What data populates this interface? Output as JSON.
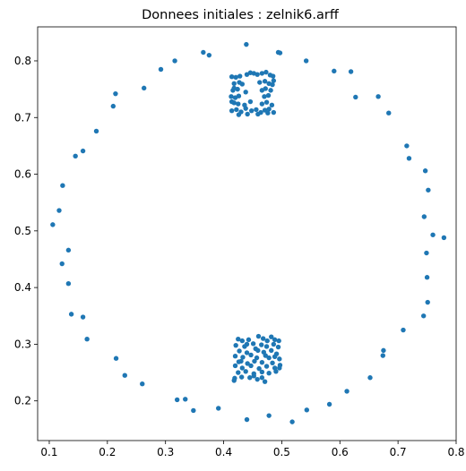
{
  "chart_data": {
    "type": "scatter",
    "title": "Donnees initiales : zelnik6.arff",
    "xlabel": "",
    "ylabel": "",
    "xlim": [
      0.08,
      0.8
    ],
    "ylim": [
      0.13,
      0.86
    ],
    "xticks": [
      "0.1",
      "0.2",
      "0.3",
      "0.4",
      "0.5",
      "0.6",
      "0.7",
      "0.8"
    ],
    "xtick_values": [
      0.1,
      0.2,
      0.3,
      0.4,
      0.5,
      0.6,
      0.7,
      0.8
    ],
    "yticks": [
      "0.2",
      "0.3",
      "0.4",
      "0.5",
      "0.6",
      "0.7",
      "0.8"
    ],
    "ytick_values": [
      0.2,
      0.3,
      0.4,
      0.5,
      0.6,
      0.7,
      0.8
    ],
    "grid": false,
    "marker_color": "#1f77b4",
    "series": [
      {
        "name": "",
        "points": [
          [
            0.439,
            0.829
          ],
          [
            0.365,
            0.815
          ],
          [
            0.375,
            0.81
          ],
          [
            0.316,
            0.8
          ],
          [
            0.292,
            0.785
          ],
          [
            0.263,
            0.752
          ],
          [
            0.214,
            0.742
          ],
          [
            0.21,
            0.72
          ],
          [
            0.181,
            0.676
          ],
          [
            0.158,
            0.641
          ],
          [
            0.145,
            0.632
          ],
          [
            0.123,
            0.58
          ],
          [
            0.117,
            0.536
          ],
          [
            0.106,
            0.511
          ],
          [
            0.133,
            0.466
          ],
          [
            0.122,
            0.442
          ],
          [
            0.133,
            0.407
          ],
          [
            0.138,
            0.353
          ],
          [
            0.158,
            0.348
          ],
          [
            0.165,
            0.309
          ],
          [
            0.215,
            0.275
          ],
          [
            0.23,
            0.245
          ],
          [
            0.26,
            0.23
          ],
          [
            0.32,
            0.202
          ],
          [
            0.334,
            0.203
          ],
          [
            0.348,
            0.183
          ],
          [
            0.391,
            0.187
          ],
          [
            0.44,
            0.167
          ],
          [
            0.478,
            0.174
          ],
          [
            0.518,
            0.163
          ],
          [
            0.543,
            0.184
          ],
          [
            0.582,
            0.194
          ],
          [
            0.612,
            0.217
          ],
          [
            0.652,
            0.241
          ],
          [
            0.674,
            0.28
          ],
          [
            0.675,
            0.289
          ],
          [
            0.709,
            0.325
          ],
          [
            0.744,
            0.35
          ],
          [
            0.751,
            0.374
          ],
          [
            0.75,
            0.418
          ],
          [
            0.749,
            0.461
          ],
          [
            0.745,
            0.525
          ],
          [
            0.76,
            0.493
          ],
          [
            0.779,
            0.488
          ],
          [
            0.752,
            0.572
          ],
          [
            0.747,
            0.606
          ],
          [
            0.719,
            0.628
          ],
          [
            0.715,
            0.65
          ],
          [
            0.684,
            0.708
          ],
          [
            0.666,
            0.737
          ],
          [
            0.627,
            0.736
          ],
          [
            0.619,
            0.781
          ],
          [
            0.59,
            0.782
          ],
          [
            0.542,
            0.8
          ],
          [
            0.494,
            0.815
          ],
          [
            0.497,
            0.814
          ],
          [
            0.414,
            0.772
          ],
          [
            0.421,
            0.771
          ],
          [
            0.428,
            0.773
          ],
          [
            0.44,
            0.776
          ],
          [
            0.446,
            0.779
          ],
          [
            0.452,
            0.778
          ],
          [
            0.458,
            0.776
          ],
          [
            0.466,
            0.778
          ],
          [
            0.473,
            0.78
          ],
          [
            0.48,
            0.775
          ],
          [
            0.485,
            0.773
          ],
          [
            0.418,
            0.76
          ],
          [
            0.427,
            0.762
          ],
          [
            0.432,
            0.759
          ],
          [
            0.462,
            0.762
          ],
          [
            0.471,
            0.764
          ],
          [
            0.478,
            0.76
          ],
          [
            0.484,
            0.758
          ],
          [
            0.416,
            0.748
          ],
          [
            0.424,
            0.75
          ],
          [
            0.438,
            0.745
          ],
          [
            0.466,
            0.748
          ],
          [
            0.472,
            0.751
          ],
          [
            0.481,
            0.748
          ],
          [
            0.413,
            0.737
          ],
          [
            0.42,
            0.735
          ],
          [
            0.426,
            0.738
          ],
          [
            0.47,
            0.737
          ],
          [
            0.477,
            0.739
          ],
          [
            0.418,
            0.726
          ],
          [
            0.425,
            0.724
          ],
          [
            0.436,
            0.722
          ],
          [
            0.446,
            0.728
          ],
          [
            0.466,
            0.724
          ],
          [
            0.474,
            0.727
          ],
          [
            0.483,
            0.722
          ],
          [
            0.414,
            0.712
          ],
          [
            0.422,
            0.714
          ],
          [
            0.43,
            0.71
          ],
          [
            0.438,
            0.716
          ],
          [
            0.448,
            0.712
          ],
          [
            0.456,
            0.714
          ],
          [
            0.464,
            0.709
          ],
          [
            0.471,
            0.713
          ],
          [
            0.478,
            0.715
          ],
          [
            0.486,
            0.709
          ],
          [
            0.426,
            0.705
          ],
          [
            0.441,
            0.706
          ],
          [
            0.459,
            0.706
          ],
          [
            0.476,
            0.708
          ],
          [
            0.414,
            0.728
          ],
          [
            0.486,
            0.765
          ],
          [
            0.418,
            0.752
          ],
          [
            0.425,
            0.309
          ],
          [
            0.432,
            0.306
          ],
          [
            0.443,
            0.308
          ],
          [
            0.46,
            0.314
          ],
          [
            0.468,
            0.31
          ],
          [
            0.475,
            0.306
          ],
          [
            0.482,
            0.313
          ],
          [
            0.488,
            0.308
          ],
          [
            0.495,
            0.306
          ],
          [
            0.421,
            0.298
          ],
          [
            0.436,
            0.296
          ],
          [
            0.451,
            0.301
          ],
          [
            0.465,
            0.299
          ],
          [
            0.474,
            0.296
          ],
          [
            0.486,
            0.3
          ],
          [
            0.494,
            0.295
          ],
          [
            0.427,
            0.288
          ],
          [
            0.44,
            0.285
          ],
          [
            0.459,
            0.289
          ],
          [
            0.469,
            0.286
          ],
          [
            0.482,
            0.289
          ],
          [
            0.491,
            0.283
          ],
          [
            0.42,
            0.279
          ],
          [
            0.433,
            0.277
          ],
          [
            0.447,
            0.281
          ],
          [
            0.457,
            0.276
          ],
          [
            0.472,
            0.28
          ],
          [
            0.478,
            0.276
          ],
          [
            0.488,
            0.278
          ],
          [
            0.496,
            0.274
          ],
          [
            0.426,
            0.269
          ],
          [
            0.441,
            0.266
          ],
          [
            0.453,
            0.27
          ],
          [
            0.466,
            0.268
          ],
          [
            0.484,
            0.267
          ],
          [
            0.42,
            0.262
          ],
          [
            0.432,
            0.258
          ],
          [
            0.447,
            0.262
          ],
          [
            0.461,
            0.257
          ],
          [
            0.474,
            0.261
          ],
          [
            0.488,
            0.258
          ],
          [
            0.497,
            0.263
          ],
          [
            0.425,
            0.25
          ],
          [
            0.438,
            0.252
          ],
          [
            0.452,
            0.248
          ],
          [
            0.466,
            0.251
          ],
          [
            0.478,
            0.249
          ],
          [
            0.49,
            0.252
          ],
          [
            0.419,
            0.24
          ],
          [
            0.431,
            0.242
          ],
          [
            0.445,
            0.241
          ],
          [
            0.458,
            0.238
          ],
          [
            0.471,
            0.234
          ],
          [
            0.418,
            0.236
          ],
          [
            0.452,
            0.244
          ],
          [
            0.466,
            0.241
          ],
          [
            0.496,
            0.258
          ],
          [
            0.44,
            0.3
          ],
          [
            0.455,
            0.292
          ],
          [
            0.43,
            0.27
          ]
        ]
      }
    ]
  }
}
